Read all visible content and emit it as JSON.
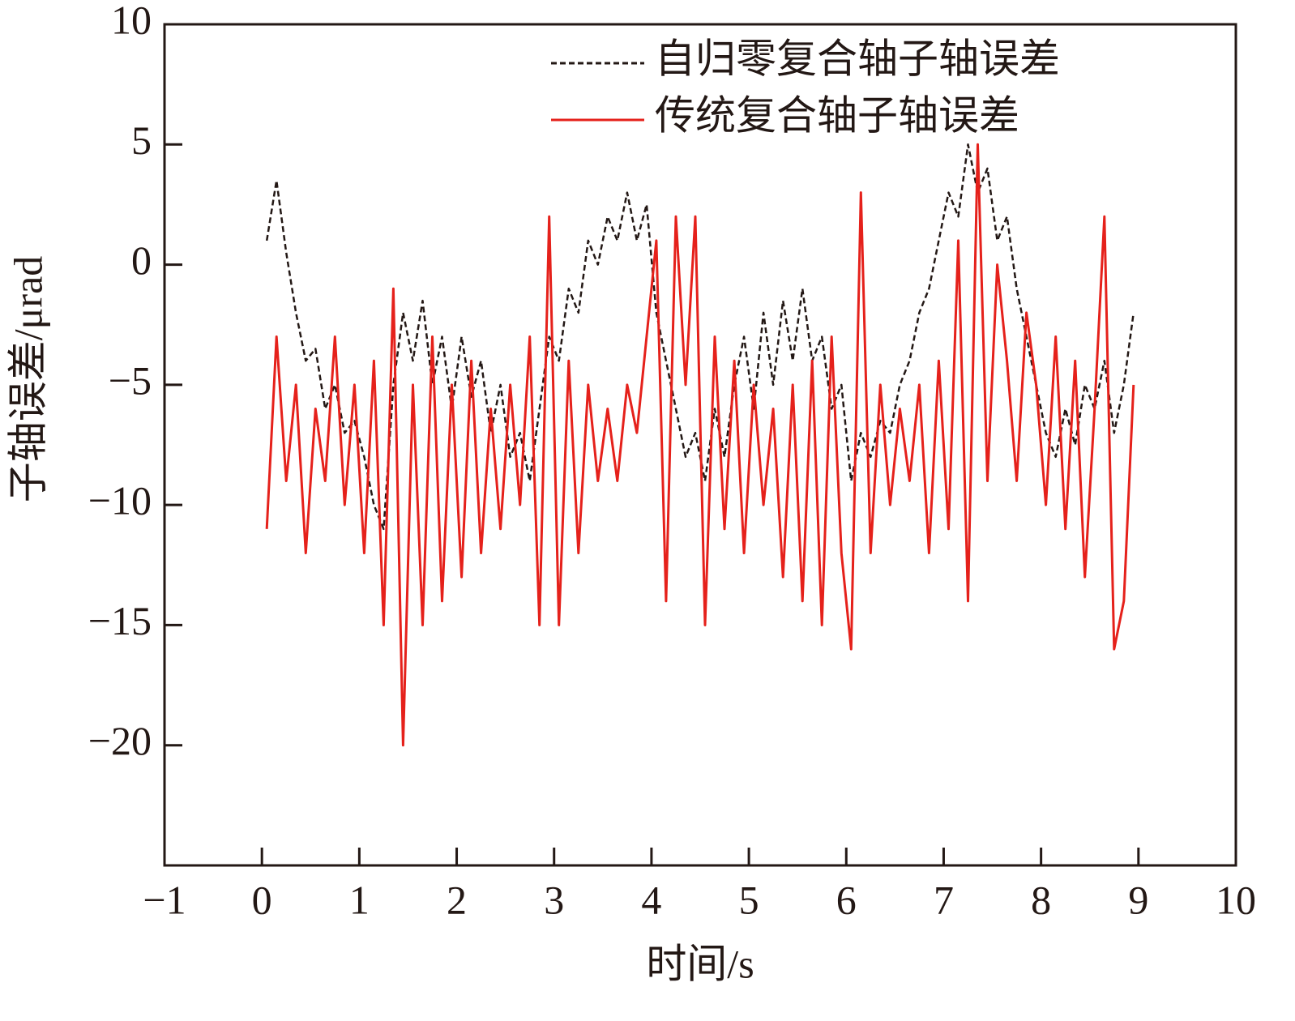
{
  "chart_data": {
    "type": "line",
    "x_label": "时间/s",
    "y_label": "子轴误差/μrad",
    "xlim": [
      -1,
      10
    ],
    "ylim": [
      -25,
      10
    ],
    "xticks": [
      {
        "value": -1,
        "label": "−1"
      },
      0,
      1,
      2,
      3,
      4,
      5,
      6,
      7,
      8,
      9,
      10
    ],
    "yticks": [
      {
        "value": -20,
        "label": "−20"
      },
      {
        "value": -15,
        "label": "−15"
      },
      {
        "value": -10,
        "label": "−10"
      },
      {
        "value": -5,
        "label": "−5"
      },
      0,
      5,
      10
    ],
    "legend": "upper right",
    "x": [
      0.05,
      0.15,
      0.25,
      0.35,
      0.45,
      0.55,
      0.65,
      0.75,
      0.85,
      0.95,
      1.05,
      1.15,
      1.25,
      1.35,
      1.45,
      1.55,
      1.65,
      1.75,
      1.85,
      1.95,
      2.05,
      2.15,
      2.25,
      2.35,
      2.45,
      2.55,
      2.65,
      2.75,
      2.85,
      2.95,
      3.05,
      3.15,
      3.25,
      3.35,
      3.45,
      3.55,
      3.65,
      3.75,
      3.85,
      3.95,
      4.05,
      4.15,
      4.25,
      4.35,
      4.45,
      4.55,
      4.65,
      4.75,
      4.85,
      4.95,
      5.05,
      5.15,
      5.25,
      5.35,
      5.45,
      5.55,
      5.65,
      5.75,
      5.85,
      5.95,
      6.05,
      6.15,
      6.25,
      6.35,
      6.45,
      6.55,
      6.65,
      6.75,
      6.85,
      6.95,
      7.05,
      7.15,
      7.25,
      7.35,
      7.45,
      7.55,
      7.65,
      7.75,
      7.85,
      7.95,
      8.05,
      8.15,
      8.25,
      8.35,
      8.45,
      8.55,
      8.65,
      8.75,
      8.85,
      8.95
    ],
    "series": [
      {
        "name": "自归零复合轴子轴误差",
        "color": "#231815",
        "dashed": true,
        "values": [
          1,
          3.5,
          0.5,
          -2,
          -4,
          -3.5,
          -6,
          -5,
          -7,
          -6.5,
          -8,
          -10,
          -11,
          -5,
          -2,
          -4,
          -1.5,
          -5,
          -3,
          -6,
          -3,
          -5.5,
          -4,
          -7,
          -5,
          -8,
          -7,
          -9,
          -6,
          -3,
          -4,
          -1,
          -2,
          1,
          0,
          2,
          1,
          3,
          1,
          2.5,
          -2,
          -4,
          -6,
          -8,
          -7,
          -9,
          -6,
          -8,
          -5,
          -3,
          -6,
          -2,
          -5,
          -1.5,
          -4,
          -1,
          -4,
          -3,
          -6,
          -5,
          -9,
          -7,
          -8,
          -6.5,
          -7,
          -5,
          -4,
          -2,
          -1,
          1,
          3,
          2,
          5,
          3,
          4,
          1,
          2,
          -1,
          -3,
          -5,
          -7,
          -8,
          -6,
          -7.5,
          -5,
          -6,
          -4,
          -7,
          -5,
          -2
        ]
      },
      {
        "name": "传统复合轴子轴误差",
        "color": "#e5211b",
        "dashed": false,
        "values": [
          -11,
          -3,
          -9,
          -5,
          -12,
          -6,
          -9,
          -3,
          -10,
          -5,
          -12,
          -4,
          -15,
          -1,
          -20,
          -5,
          -15,
          -3,
          -14,
          -5,
          -13,
          -4,
          -12,
          -6,
          -11,
          -5,
          -10,
          -3,
          -15,
          2,
          -15,
          -4,
          -12,
          -5,
          -9,
          -6,
          -9,
          -5,
          -7,
          -3,
          1,
          -14,
          2,
          -5,
          2,
          -15,
          -3,
          -11,
          -4,
          -12,
          -5,
          -10,
          -6,
          -13,
          -5,
          -14,
          -4,
          -15,
          -3,
          -12,
          -16,
          3,
          -12,
          -5,
          -10,
          -6,
          -9,
          -5,
          -12,
          -4,
          -11,
          1,
          -14,
          5,
          -9,
          0,
          -4,
          -9,
          -2,
          -5,
          -10,
          -3,
          -11,
          -4,
          -13,
          -6,
          2,
          -16,
          -14,
          -5
        ]
      }
    ]
  }
}
